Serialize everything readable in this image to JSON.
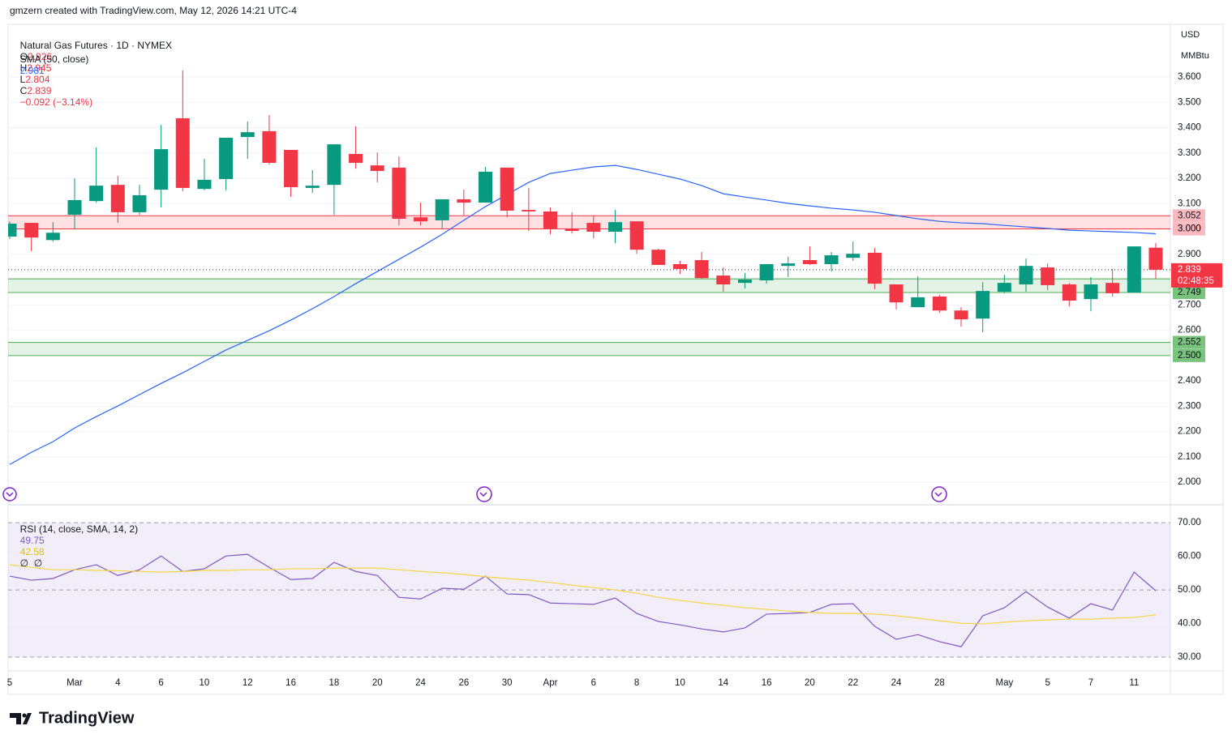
{
  "header": {
    "credit": "gmzern created with TradingView.com, May 12, 2026 14:21 UTC-4",
    "logo": "TradingView",
    "currency": "USD",
    "unit": "MMBtu"
  },
  "chart_data": [
    {
      "type": "candlestick",
      "title": "Natural Gas Futures · 1D · NYMEX",
      "ohlc_letters": [
        "O",
        "H",
        "L",
        "C"
      ],
      "change": "−0.092 (−3.14%)",
      "countdown": "02:48:35",
      "up_color": "#089981",
      "down_color": "#f23645",
      "categories": [
        "5",
        null,
        null,
        "Mar",
        null,
        "4",
        null,
        "6",
        null,
        "10",
        null,
        "12",
        null,
        "16",
        null,
        "18",
        null,
        "20",
        null,
        "24",
        null,
        "26",
        null,
        "30",
        null,
        "Apr",
        null,
        "6",
        null,
        "8",
        null,
        "10",
        null,
        "14",
        null,
        "16",
        null,
        "20",
        null,
        "22",
        null,
        "24",
        null,
        "28",
        null,
        null,
        "May",
        null,
        "5",
        null,
        "7",
        null,
        "11",
        null
      ],
      "open": [
        2.97,
        3.024,
        2.956,
        3.056,
        3.11,
        3.174,
        3.066,
        3.155,
        3.437,
        3.158,
        3.197,
        3.363,
        3.386,
        3.312,
        3.162,
        3.174,
        3.296,
        3.251,
        3.242,
        3.046,
        3.034,
        3.117,
        3.104,
        3.242,
        3.075,
        3.069,
        3.002,
        3.024,
        2.989,
        3.03,
        2.918,
        2.861,
        2.877,
        2.816,
        2.787,
        2.797,
        2.854,
        2.877,
        2.861,
        2.886,
        2.906,
        2.781,
        2.691,
        2.733,
        2.678,
        2.646,
        2.752,
        2.781,
        2.848,
        2.781,
        2.723,
        2.787,
        2.749,
        2.926
      ],
      "high": [
        3.03,
        3.024,
        3.027,
        3.2,
        3.322,
        3.21,
        3.174,
        3.411,
        3.626,
        3.277,
        3.36,
        3.424,
        3.45,
        3.312,
        3.232,
        3.334,
        3.405,
        3.302,
        3.286,
        3.104,
        3.117,
        3.155,
        3.245,
        3.242,
        3.162,
        3.085,
        3.066,
        3.053,
        3.075,
        3.03,
        2.922,
        2.874,
        2.909,
        2.848,
        2.826,
        2.861,
        2.89,
        2.931,
        2.909,
        2.95,
        2.925,
        2.781,
        2.813,
        2.739,
        2.691,
        2.79,
        2.819,
        2.883,
        2.864,
        2.787,
        2.81,
        2.842,
        2.931,
        2.945
      ],
      "low": [
        2.96,
        2.912,
        2.95,
        2.998,
        3.104,
        3.024,
        3.056,
        3.085,
        3.149,
        3.152,
        3.152,
        3.277,
        3.254,
        3.126,
        3.142,
        3.056,
        3.238,
        3.184,
        3.014,
        3.014,
        3.002,
        3.053,
        3.104,
        3.046,
        2.992,
        2.979,
        2.982,
        2.963,
        2.944,
        2.902,
        2.858,
        2.822,
        2.803,
        2.752,
        2.765,
        2.784,
        2.81,
        2.858,
        2.832,
        2.874,
        2.762,
        2.682,
        2.691,
        2.669,
        2.614,
        2.592,
        2.746,
        2.752,
        2.758,
        2.694,
        2.675,
        2.733,
        2.749,
        2.804
      ],
      "close": [
        3.021,
        2.966,
        2.985,
        3.114,
        3.171,
        3.066,
        3.133,
        3.315,
        3.162,
        3.194,
        3.36,
        3.382,
        3.261,
        3.165,
        3.171,
        3.334,
        3.261,
        3.229,
        3.04,
        3.03,
        3.117,
        3.104,
        3.226,
        3.072,
        3.069,
        3.002,
        2.992,
        2.989,
        3.027,
        2.918,
        2.858,
        2.842,
        2.806,
        2.781,
        2.8,
        2.861,
        2.864,
        2.861,
        2.896,
        2.902,
        2.784,
        2.71,
        2.73,
        2.678,
        2.643,
        2.755,
        2.787,
        2.854,
        2.778,
        2.717,
        2.781,
        2.746,
        2.931,
        2.839
      ],
      "overlays": [
        {
          "name": "SMA (50, close)",
          "color": "#2962ff",
          "values": [
            2.07,
            2.118,
            2.16,
            2.214,
            2.259,
            2.301,
            2.346,
            2.39,
            2.432,
            2.477,
            2.522,
            2.56,
            2.598,
            2.64,
            2.685,
            2.733,
            2.784,
            2.832,
            2.88,
            2.928,
            2.979,
            3.034,
            3.088,
            3.136,
            3.184,
            3.219,
            3.232,
            3.245,
            3.251,
            3.235,
            3.216,
            3.197,
            3.171,
            3.139,
            3.126,
            3.114,
            3.101,
            3.091,
            3.082,
            3.075,
            3.066,
            3.053,
            3.04,
            3.03,
            3.024,
            3.021,
            3.014,
            3.008,
            3.002,
            2.995,
            2.992,
            2.989,
            2.986,
            2.981
          ]
        }
      ],
      "zones": [
        {
          "color": "#f23645",
          "bounds": [
            {
              "value": 3,
              "label": "3.000"
            },
            3.052
          ]
        },
        {
          "color": "#4caf50",
          "bounds": [
            2.749,
            2.803
          ]
        },
        {
          "color": "#4caf50",
          "bounds": [
            {
              "value": 2.5,
              "label": "2.500"
            },
            2.552
          ]
        }
      ],
      "ylim": [
        1.914,
        3.808
      ],
      "yticks": [
        {
          "value": 2,
          "label": "2.000"
        },
        {
          "value": 2.1,
          "label": "2.100"
        },
        {
          "value": 2.2,
          "label": "2.200"
        },
        {
          "value": 2.3,
          "label": "2.300"
        },
        {
          "value": 2.4,
          "label": "2.400"
        },
        {
          "value": 2.5,
          "label": "2.500"
        },
        {
          "value": 2.6,
          "label": "2.600"
        },
        {
          "value": 2.7,
          "label": "2.700"
        },
        {
          "value": 2.8,
          "label": "2.800"
        },
        {
          "value": 2.9,
          "label": "2.900"
        },
        {
          "value": 3,
          "label": "3.000"
        },
        {
          "value": 3.1,
          "label": "3.100"
        },
        {
          "value": 3.2,
          "label": "3.200"
        },
        {
          "value": 3.3,
          "label": "3.300"
        },
        {
          "value": 3.4,
          "label": "3.400"
        },
        {
          "value": 3.5,
          "label": "3.500"
        },
        {
          "value": 3.6,
          "label": "3.600"
        }
      ],
      "grid": true
    },
    {
      "type": "line",
      "title": "RSI (14, close, SMA, 14, 2)",
      "extra": "∅  ∅",
      "series": [
        {
          "color": "#7e57c2",
          "values": [
            54.1,
            52.9,
            53.4,
            56.0,
            57.5,
            54.3,
            56.0,
            60.1,
            55.5,
            56.3,
            60.1,
            60.6,
            56.7,
            53.1,
            53.4,
            58.2,
            55.5,
            54.3,
            47.8,
            47.3,
            50.5,
            50.2,
            54.1,
            48.8,
            48.6,
            46.1,
            45.9,
            45.7,
            47.6,
            43.0,
            40.6,
            39.6,
            38.4,
            37.5,
            38.7,
            42.8,
            43.0,
            43.3,
            45.7,
            45.9,
            39.2,
            35.3,
            36.7,
            34.6,
            33.1,
            42.3,
            44.7,
            49.5,
            44.9,
            41.6,
            45.9,
            44.0,
            55.3,
            49.75
          ]
        },
        {
          "color": "#f5d547",
          "values": [
            57.5,
            56.7,
            56.0,
            56.0,
            55.8,
            55.7,
            55.5,
            55.3,
            55.5,
            55.8,
            55.8,
            56.0,
            56.0,
            56.3,
            56.3,
            56.5,
            56.5,
            56.5,
            56.0,
            55.5,
            55.1,
            54.6,
            53.9,
            53.4,
            52.9,
            52.2,
            51.4,
            50.7,
            50.0,
            49.0,
            47.8,
            46.9,
            46.1,
            45.4,
            44.7,
            44.2,
            43.7,
            43.3,
            43.0,
            43.0,
            42.8,
            42.3,
            41.6,
            40.8,
            40.1,
            39.9,
            40.4,
            40.8,
            41.1,
            41.3,
            41.3,
            41.6,
            41.8,
            42.58
          ]
        }
      ],
      "bands": [
        30,
        70
      ],
      "band_color": "#7e57c2",
      "dashed": [
        30,
        50,
        70
      ],
      "ylim": [
        25.9,
        75.1
      ],
      "yticks": [
        {
          "value": 30,
          "label": "30.00"
        },
        {
          "value": 40,
          "label": "40.00"
        },
        {
          "value": 50,
          "label": "50.00"
        },
        {
          "value": 60,
          "label": "60.00"
        },
        {
          "value": 70,
          "label": "70.00"
        }
      ],
      "grid": true
    }
  ]
}
